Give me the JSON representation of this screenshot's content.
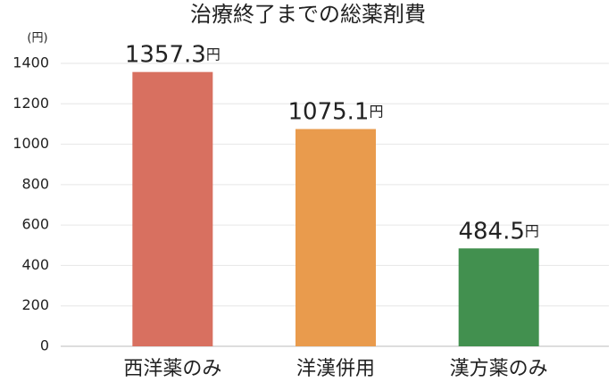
{
  "chart_data": {
    "type": "bar",
    "title": "治療終了までの総薬剤費",
    "y_unit": "(円)",
    "categories": [
      "西洋薬のみ",
      "洋漢併用",
      "漢方薬のみ"
    ],
    "values": [
      1357.3,
      1075.1,
      484.5
    ],
    "value_labels": [
      "1357.3円",
      "1075.1円",
      "484.5円"
    ],
    "colors": [
      "#d87060",
      "#e99b4d",
      "#42904f"
    ],
    "ylim": [
      0,
      1400
    ],
    "yticks": [
      0,
      200,
      400,
      600,
      800,
      1000,
      1200,
      1400
    ],
    "grid": true
  }
}
